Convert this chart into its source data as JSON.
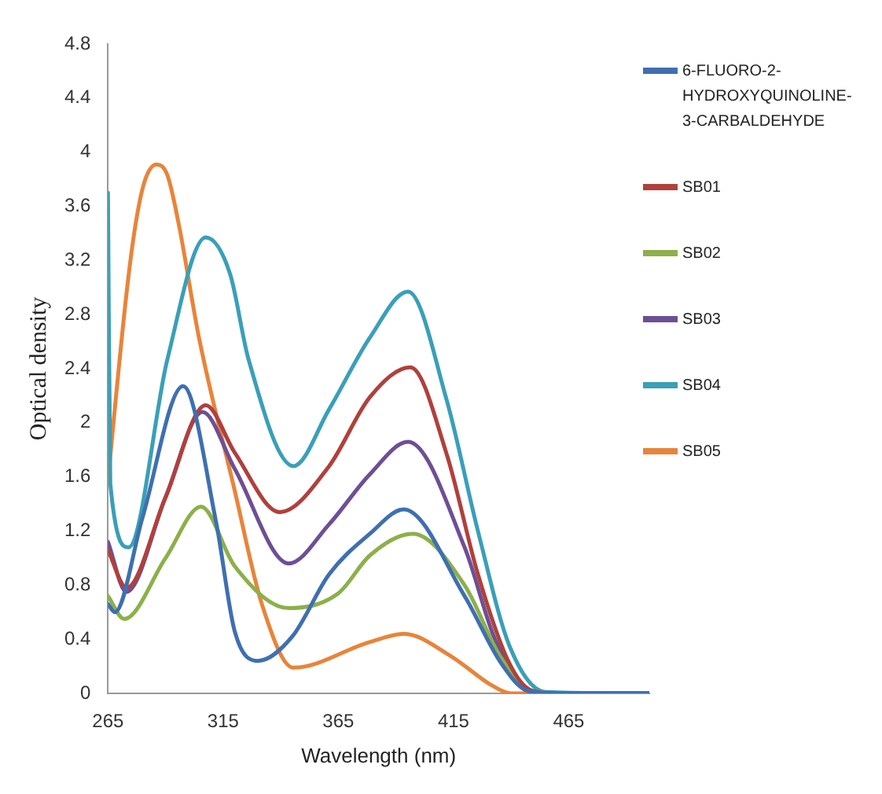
{
  "chart_data": {
    "type": "line",
    "xlabel": "Wavelength (nm)",
    "ylabel": "Optical density",
    "xlim": [
      265,
      500
    ],
    "xticks": [
      265,
      315,
      365,
      415,
      465
    ],
    "ylim": [
      0,
      4.8
    ],
    "yticks": [
      0,
      0.4,
      0.8,
      1.2,
      1.6,
      2,
      2.4,
      2.8,
      3.2,
      3.6,
      4,
      4.4,
      4.8
    ],
    "grid": false,
    "legend": "right",
    "marker": "none",
    "line_style": "solid",
    "series": [
      {
        "name": "6-FLUORO-2-HYDROXYQUINOLINE-3-CARBALDEHYDE",
        "color": "#3f6fb0",
        "x": [
          265,
          268,
          280,
          297.6,
          312,
          320,
          330,
          345,
          361,
          378.7,
          393.4,
          419.8,
          435.4,
          447,
          460,
          500
        ],
        "values": [
          0.66,
          0.6,
          1.3,
          2.27,
          1.26,
          0.46,
          0.24,
          0.42,
          0.88,
          1.18,
          1.36,
          0.72,
          0.23,
          0.02,
          0,
          0
        ]
      },
      {
        "name": "SB01",
        "color": "#b0403c",
        "x": [
          265,
          273,
          290,
          307.4,
          320,
          339.6,
          361,
          378.7,
          396.3,
          412,
          425.6,
          439,
          449,
          460,
          500
        ],
        "values": [
          1.06,
          0.78,
          1.45,
          2.13,
          1.78,
          1.34,
          1.68,
          2.19,
          2.41,
          1.77,
          0.88,
          0.23,
          0.02,
          0,
          0
        ]
      },
      {
        "name": "SB02",
        "color": "#8cb04a",
        "x": [
          265,
          272,
          290,
          305.4,
          320,
          343.5,
          365,
          378.7,
          397.3,
          419.8,
          435.4,
          449,
          460,
          500
        ],
        "values": [
          0.72,
          0.55,
          1.0,
          1.38,
          0.94,
          0.63,
          0.74,
          1.02,
          1.18,
          0.8,
          0.27,
          0.02,
          0,
          0
        ]
      },
      {
        "name": "SB03",
        "color": "#6d4f95",
        "x": [
          265,
          273,
          290,
          306,
          320,
          343.5,
          361,
          378.7,
          395.3,
          419.8,
          433,
          447,
          460,
          500
        ],
        "values": [
          1.12,
          0.75,
          1.45,
          2.08,
          1.66,
          0.96,
          1.25,
          1.62,
          1.86,
          1.08,
          0.4,
          0.02,
          0,
          0
        ]
      },
      {
        "name": "SB04",
        "color": "#3a9fb8",
        "x": [
          265,
          266,
          274,
          290.8,
          307.4,
          318,
          326,
          345.5,
          361,
          378.7,
          395.3,
          412,
          425.6,
          439.3,
          455,
          500
        ],
        "values": [
          3.7,
          1.55,
          1.08,
          2.47,
          3.37,
          3.1,
          2.47,
          1.68,
          2.1,
          2.63,
          2.97,
          2.17,
          1.2,
          0.35,
          0.01,
          0
        ]
      },
      {
        "name": "SB05",
        "color": "#e8843a",
        "x": [
          265,
          273,
          277,
          281,
          286,
          290.8,
          295.7,
          304.5,
          320,
          331.8,
          345.5,
          378.7,
          393.4,
          414.3,
          431.5,
          440,
          500
        ],
        "values": [
          1.58,
          2.95,
          3.47,
          3.79,
          3.91,
          3.83,
          3.47,
          2.63,
          1.5,
          0.66,
          0.19,
          0.38,
          0.44,
          0.27,
          0.06,
          0,
          0
        ]
      }
    ]
  }
}
